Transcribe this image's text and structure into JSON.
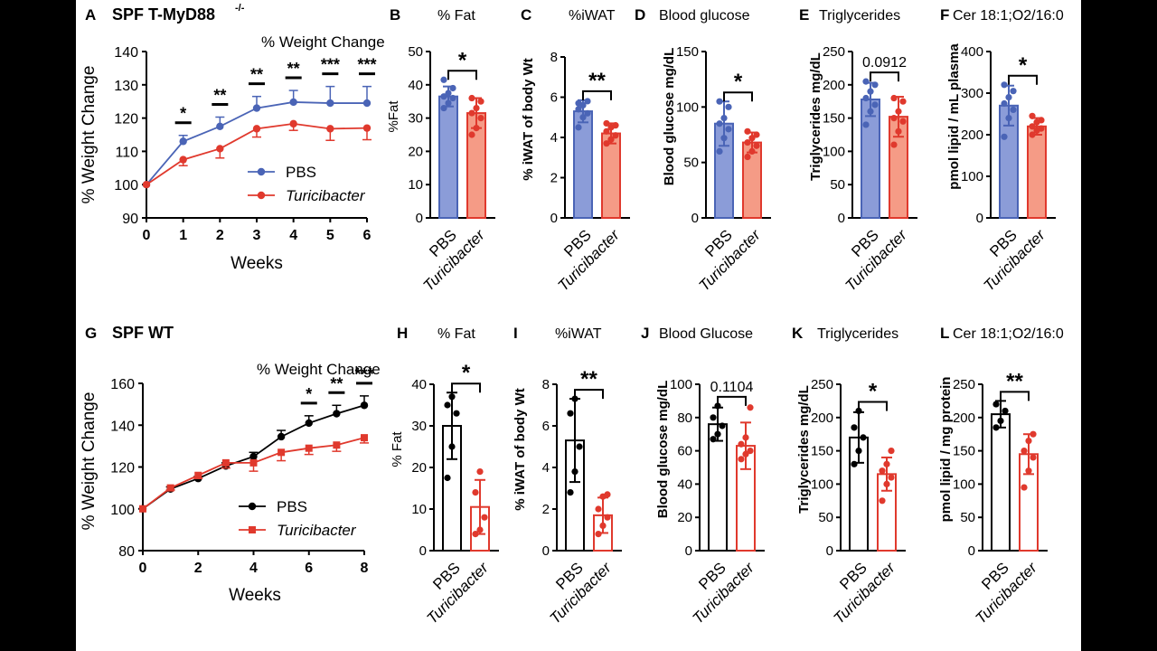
{
  "colors": {
    "pbs_blue": "#4a64b6",
    "pbs_blue_fill": "#8b9cd8",
    "turi_red": "#e0392d",
    "turi_red_fill": "#f59b86",
    "wt_black": "#000000"
  },
  "row1": {
    "title": "SPF T-MyD88",
    "title_sup": "-/-"
  },
  "row2": {
    "title": "SPF WT"
  },
  "chart_data": [
    {
      "id": "A",
      "type": "line",
      "letter": "A",
      "title": "% Weight Change",
      "xlabel": "Weeks",
      "ylabel": "% Weight Change",
      "xlim": [
        0,
        6
      ],
      "ylim": [
        90,
        140
      ],
      "xticks": [
        0,
        1,
        2,
        3,
        4,
        5,
        6
      ],
      "yticks": [
        90,
        100,
        110,
        120,
        130,
        140
      ],
      "series": [
        {
          "name": "PBS",
          "marker": "circle",
          "x": [
            0,
            1,
            2,
            3,
            4,
            5,
            6
          ],
          "values": [
            100,
            113,
            117.5,
            123,
            124.8,
            124.5,
            124.5
          ],
          "err": [
            0,
            1.8,
            2.8,
            3.5,
            3.5,
            5,
            5
          ]
        },
        {
          "name": "Turicibacter",
          "marker": "circle",
          "x": [
            0,
            1,
            2,
            3,
            4,
            5,
            6
          ],
          "values": [
            100,
            107.5,
            110.8,
            116.8,
            118.3,
            116.8,
            117
          ],
          "err": [
            0,
            1.8,
            2.8,
            2.5,
            2,
            3.5,
            3.5
          ]
        }
      ],
      "legend": [
        "PBS",
        "Turicibacter"
      ],
      "significance": [
        "*",
        "**",
        "**",
        "**",
        "***",
        "***"
      ]
    },
    {
      "id": "B",
      "type": "bar",
      "letter": "B",
      "title": "% Fat",
      "ylabel": "%Fat",
      "categories": [
        "PBS",
        "Turicibacter"
      ],
      "ylim": [
        0,
        50
      ],
      "yticks": [
        0,
        10,
        20,
        30,
        40,
        50
      ],
      "values": [
        36.5,
        31.5
      ],
      "err": [
        3,
        4.5
      ],
      "points": [
        [
          33,
          34.5,
          36,
          36.5,
          37.5,
          39,
          41.5
        ],
        [
          25,
          27,
          30,
          31.5,
          33,
          35,
          36
        ]
      ],
      "significance": "*"
    },
    {
      "id": "C",
      "type": "bar",
      "letter": "C",
      "title": "%iWAT",
      "ylabel": "% iWAT of body Wt",
      "categories": [
        "PBS",
        "Turicibacter"
      ],
      "ylim": [
        0,
        8
      ],
      "yticks": [
        0,
        2,
        4,
        6,
        8
      ],
      "values": [
        5.3,
        4.2
      ],
      "err": [
        0.55,
        0.5
      ],
      "points": [
        [
          4.5,
          5,
          5.2,
          5.4,
          5.6,
          5.8,
          5.7
        ],
        [
          3.7,
          3.9,
          4.1,
          4.3,
          4.5,
          4.6,
          4.7
        ]
      ],
      "significance": "**"
    },
    {
      "id": "D",
      "type": "bar",
      "letter": "D",
      "title": "Blood glucose",
      "ylabel": "Blood glucose mg/dL",
      "categories": [
        "PBS",
        "Turicibacter"
      ],
      "ylim": [
        0,
        150
      ],
      "yticks": [
        0,
        50,
        100,
        150
      ],
      "values": [
        85,
        68
      ],
      "err": [
        20,
        9
      ],
      "points": [
        [
          60,
          72,
          80,
          85,
          90,
          100,
          105
        ],
        [
          55,
          60,
          65,
          68,
          72,
          75,
          78
        ]
      ],
      "significance": "*"
    },
    {
      "id": "E",
      "type": "bar",
      "letter": "E",
      "title": "Triglycerides",
      "ylabel": "Triglycerides mg/dL",
      "categories": [
        "PBS",
        "Turicibacter"
      ],
      "ylim": [
        0,
        250
      ],
      "yticks": [
        0,
        50,
        100,
        150,
        200,
        250
      ],
      "values": [
        178,
        152
      ],
      "err": [
        25,
        30
      ],
      "points": [
        [
          140,
          160,
          170,
          180,
          190,
          200,
          205
        ],
        [
          110,
          130,
          145,
          150,
          160,
          175,
          180
        ]
      ],
      "significance": "0.0912"
    },
    {
      "id": "F",
      "type": "bar",
      "letter": "F",
      "title": "Cer 18:1;O2/16:0",
      "ylabel": "pmol lipid / mL plasma",
      "categories": [
        "PBS",
        "Turicibacter"
      ],
      "ylim": [
        0,
        400
      ],
      "yticks": [
        0,
        100,
        200,
        300,
        400
      ],
      "values": [
        270,
        220
      ],
      "err": [
        48,
        20
      ],
      "points": [
        [
          195,
          240,
          260,
          275,
          290,
          305,
          320
        ],
        [
          200,
          210,
          215,
          220,
          230,
          235,
          245
        ]
      ],
      "significance": "*"
    },
    {
      "id": "G",
      "type": "line",
      "letter": "G",
      "title": "% Weight Change",
      "xlabel": "Weeks",
      "ylabel": "% Weight Change",
      "xlim": [
        0,
        8
      ],
      "ylim": [
        80,
        160
      ],
      "xticks": [
        0,
        2,
        4,
        6,
        8
      ],
      "yticks": [
        80,
        100,
        120,
        140,
        160
      ],
      "series": [
        {
          "name": "PBS",
          "marker": "circle",
          "x": [
            0,
            1,
            2,
            3,
            4,
            5,
            6,
            7,
            8
          ],
          "values": [
            100,
            109.5,
            114.5,
            120.5,
            125,
            134.5,
            141,
            145.5,
            149.5
          ],
          "err": [
            0,
            1,
            1,
            1.5,
            2,
            3,
            3.5,
            4,
            4.5
          ]
        },
        {
          "name": "Turicibacter",
          "marker": "square",
          "x": [
            0,
            1,
            2,
            3,
            4,
            5,
            6,
            7,
            8
          ],
          "values": [
            100,
            110,
            116,
            122,
            122,
            127,
            129,
            130.5,
            134
          ],
          "err": [
            0,
            1,
            1.5,
            2.5,
            4,
            4,
            3,
            3,
            2.5
          ]
        }
      ],
      "legend": [
        "PBS",
        "Turicibacter"
      ],
      "significance": [
        "*",
        "**",
        "***"
      ]
    },
    {
      "id": "H",
      "type": "bar",
      "letter": "H",
      "title": "% Fat",
      "ylabel": "% Fat",
      "categories": [
        "PBS",
        "Turicibacter"
      ],
      "ylim": [
        0,
        40
      ],
      "yticks": [
        0,
        10,
        20,
        30,
        40
      ],
      "values": [
        30,
        10.5
      ],
      "err": [
        8,
        6.5
      ],
      "points": [
        [
          17.5,
          25,
          33,
          35,
          37
        ],
        [
          4,
          5,
          8,
          14,
          19
        ]
      ],
      "significance": "*"
    },
    {
      "id": "I",
      "type": "bar",
      "letter": "I",
      "title": "%iWAT",
      "ylabel": "% iWAT of body Wt",
      "categories": [
        "PBS",
        "Turicibacter"
      ],
      "ylim": [
        0,
        8
      ],
      "yticks": [
        0,
        2,
        4,
        6,
        8
      ],
      "values": [
        5.3,
        1.7
      ],
      "err": [
        2,
        0.85
      ],
      "points": [
        [
          2.8,
          3.8,
          5,
          6.6,
          7.3
        ],
        [
          0.8,
          1.2,
          1.6,
          2,
          2.6,
          2.7
        ]
      ],
      "significance": "**"
    },
    {
      "id": "J",
      "type": "bar",
      "letter": "J",
      "title": "Blood Glucose",
      "ylabel": "Blood glucose mg/dL",
      "categories": [
        "PBS",
        "Turicibacter"
      ],
      "ylim": [
        0,
        100
      ],
      "yticks": [
        0,
        20,
        40,
        60,
        80,
        100
      ],
      "values": [
        76,
        63
      ],
      "err": [
        10,
        14
      ],
      "points": [
        [
          67,
          70,
          75,
          80,
          87
        ],
        [
          55,
          58,
          60,
          64,
          68,
          86
        ]
      ],
      "significance": "0.1104"
    },
    {
      "id": "K",
      "type": "bar",
      "letter": "K",
      "title": "Triglycerides",
      "ylabel": "Triglycerides mg/dL",
      "categories": [
        "PBS",
        "Turicibacter"
      ],
      "ylim": [
        0,
        250
      ],
      "yticks": [
        0,
        50,
        100,
        150,
        200,
        250
      ],
      "values": [
        170,
        115
      ],
      "err": [
        38,
        25
      ],
      "points": [
        [
          130,
          150,
          170,
          185,
          210
        ],
        [
          75,
          100,
          110,
          120,
          130,
          150
        ]
      ],
      "significance": "*"
    },
    {
      "id": "L",
      "type": "bar",
      "letter": "L",
      "title": "Cer 18:1;O2/16:0",
      "ylabel": "pmol lipid / mg protein",
      "categories": [
        "PBS",
        "Turicibacter"
      ],
      "ylim": [
        0,
        250
      ],
      "yticks": [
        0,
        50,
        100,
        150,
        200,
        250
      ],
      "values": [
        205,
        145
      ],
      "err": [
        20,
        30
      ],
      "points": [
        [
          185,
          195,
          210,
          220
        ],
        [
          95,
          120,
          140,
          150,
          165,
          175
        ]
      ],
      "significance": "**"
    }
  ]
}
